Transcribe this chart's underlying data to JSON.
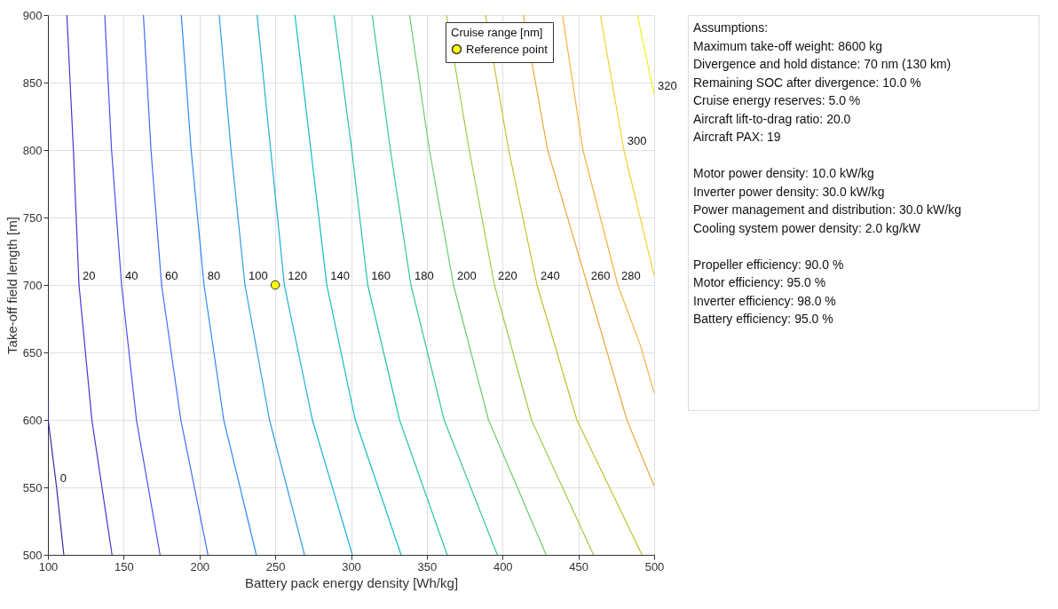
{
  "chart_data": {
    "type": "line",
    "xlabel": "Battery pack energy density [Wh/kg]",
    "ylabel": "Take-off field length [m]",
    "legend_title": "Cruise range [nm]",
    "legend": "top right",
    "grid": true,
    "marker": "none",
    "line_style": "solid",
    "xlim": [
      100,
      500
    ],
    "ylim": [
      500,
      900
    ],
    "xticks": [
      100,
      150,
      200,
      250,
      300,
      350,
      400,
      450,
      500
    ],
    "yticks": [
      500,
      550,
      600,
      650,
      700,
      750,
      800,
      850,
      900
    ],
    "series": [
      {
        "name": "0",
        "color": "#3d26a8",
        "x": [
          100,
          100.2,
          105.7,
          110.5
        ],
        "values": [
          616,
          600,
          550,
          500
        ]
      },
      {
        "name": "20",
        "color": "#4437d8",
        "x": [
          112.5,
          116.8,
          120.5,
          129,
          142.3
        ],
        "values": [
          900,
          800,
          700,
          600,
          500
        ]
      },
      {
        "name": "40",
        "color": "#4752f0",
        "x": [
          137.5,
          142,
          148.6,
          158.4,
          174
        ],
        "values": [
          900,
          800,
          700,
          600,
          500
        ]
      },
      {
        "name": "60",
        "color": "#3f6dfb",
        "x": [
          163,
          168,
          175,
          187.7,
          205.6
        ],
        "values": [
          900,
          800,
          700,
          600,
          500
        ]
      },
      {
        "name": "80",
        "color": "#2f88f4",
        "x": [
          188,
          194.5,
          203,
          216,
          237.5
        ],
        "values": [
          900,
          800,
          700,
          600,
          500
        ]
      },
      {
        "name": "100",
        "color": "#2c9de3",
        "x": [
          213,
          220.8,
          230,
          246.2,
          269.3
        ],
        "values": [
          900,
          800,
          700,
          600,
          500
        ]
      },
      {
        "name": "120",
        "color": "#1bb0d5",
        "x": [
          238,
          247,
          256,
          274.5,
          300.9
        ],
        "values": [
          900,
          800,
          700,
          600,
          500
        ]
      },
      {
        "name": "140",
        "color": "#0ebbc0",
        "x": [
          263,
          273.5,
          284,
          302.8,
          333
        ],
        "values": [
          900,
          800,
          700,
          600,
          500
        ]
      },
      {
        "name": "160",
        "color": "#24c2aa",
        "x": [
          288.8,
          300.5,
          311,
          332,
          363.4
        ],
        "values": [
          900,
          800,
          700,
          600,
          500
        ]
      },
      {
        "name": "180",
        "color": "#38c796",
        "x": [
          314,
          326,
          339.5,
          361.4,
          396.5
        ],
        "values": [
          900,
          800,
          700,
          600,
          500
        ]
      },
      {
        "name": "200",
        "color": "#6dcb6d",
        "x": [
          338.6,
          351.7,
          367.6,
          390.7,
          428.7
        ],
        "values": [
          900,
          800,
          700,
          600,
          500
        ]
      },
      {
        "name": "220",
        "color": "#9ecb45",
        "x": [
          363,
          378,
          394.6,
          419,
          460
        ],
        "values": [
          900,
          800,
          700,
          600,
          500
        ]
      },
      {
        "name": "240",
        "color": "#c4c02f",
        "x": [
          388.7,
          404,
          422.7,
          449,
          492
        ],
        "values": [
          900,
          800,
          700,
          600,
          500
        ]
      },
      {
        "name": "260",
        "color": "#e9a93a",
        "x": [
          413.7,
          429.7,
          456,
          482,
          500
        ],
        "values": [
          900,
          800,
          700,
          600,
          551
        ]
      },
      {
        "name": "280",
        "color": "#f9b040",
        "x": [
          439.5,
          453,
          476,
          491,
          500
        ],
        "values": [
          900,
          800,
          700,
          655,
          620
        ]
      },
      {
        "name": "300",
        "color": "#f5cf2e",
        "x": [
          464.5,
          480,
          500
        ],
        "values": [
          900,
          800,
          707
        ]
      },
      {
        "name": "320",
        "color": "#f2ec18",
        "x": [
          489,
          500
        ],
        "values": [
          900,
          841
        ]
      },
      {
        "name": "Reference point",
        "type": "scatter",
        "marker": "circle",
        "color": "#ffff00",
        "x": [
          250
        ],
        "values": [
          700
        ]
      }
    ],
    "annotations": [
      "Assumptions:\nMaximum take-off weight: 8600 kg\nDivergence and hold distance: 70 nm (130 km)\nRemaining SOC after divergence: 10.0 %\nCruise energy reserves: 5.0 %\nAircraft lift-to-drag ratio: 20.0\nAircraft PAX: 19",
      "Motor power density: 10.0 kW/kg\nInverter power density: 30.0 kW/kg\nPower management and distribution: 30.0 kW/kg\nCooling system power density: 2.0 kg/kW",
      "Propeller efficiency: 90.0 %\nMotor efficiency: 95.0 %\nInverter efficiency: 98.0 %\nBattery efficiency: 95.0 %"
    ]
  }
}
